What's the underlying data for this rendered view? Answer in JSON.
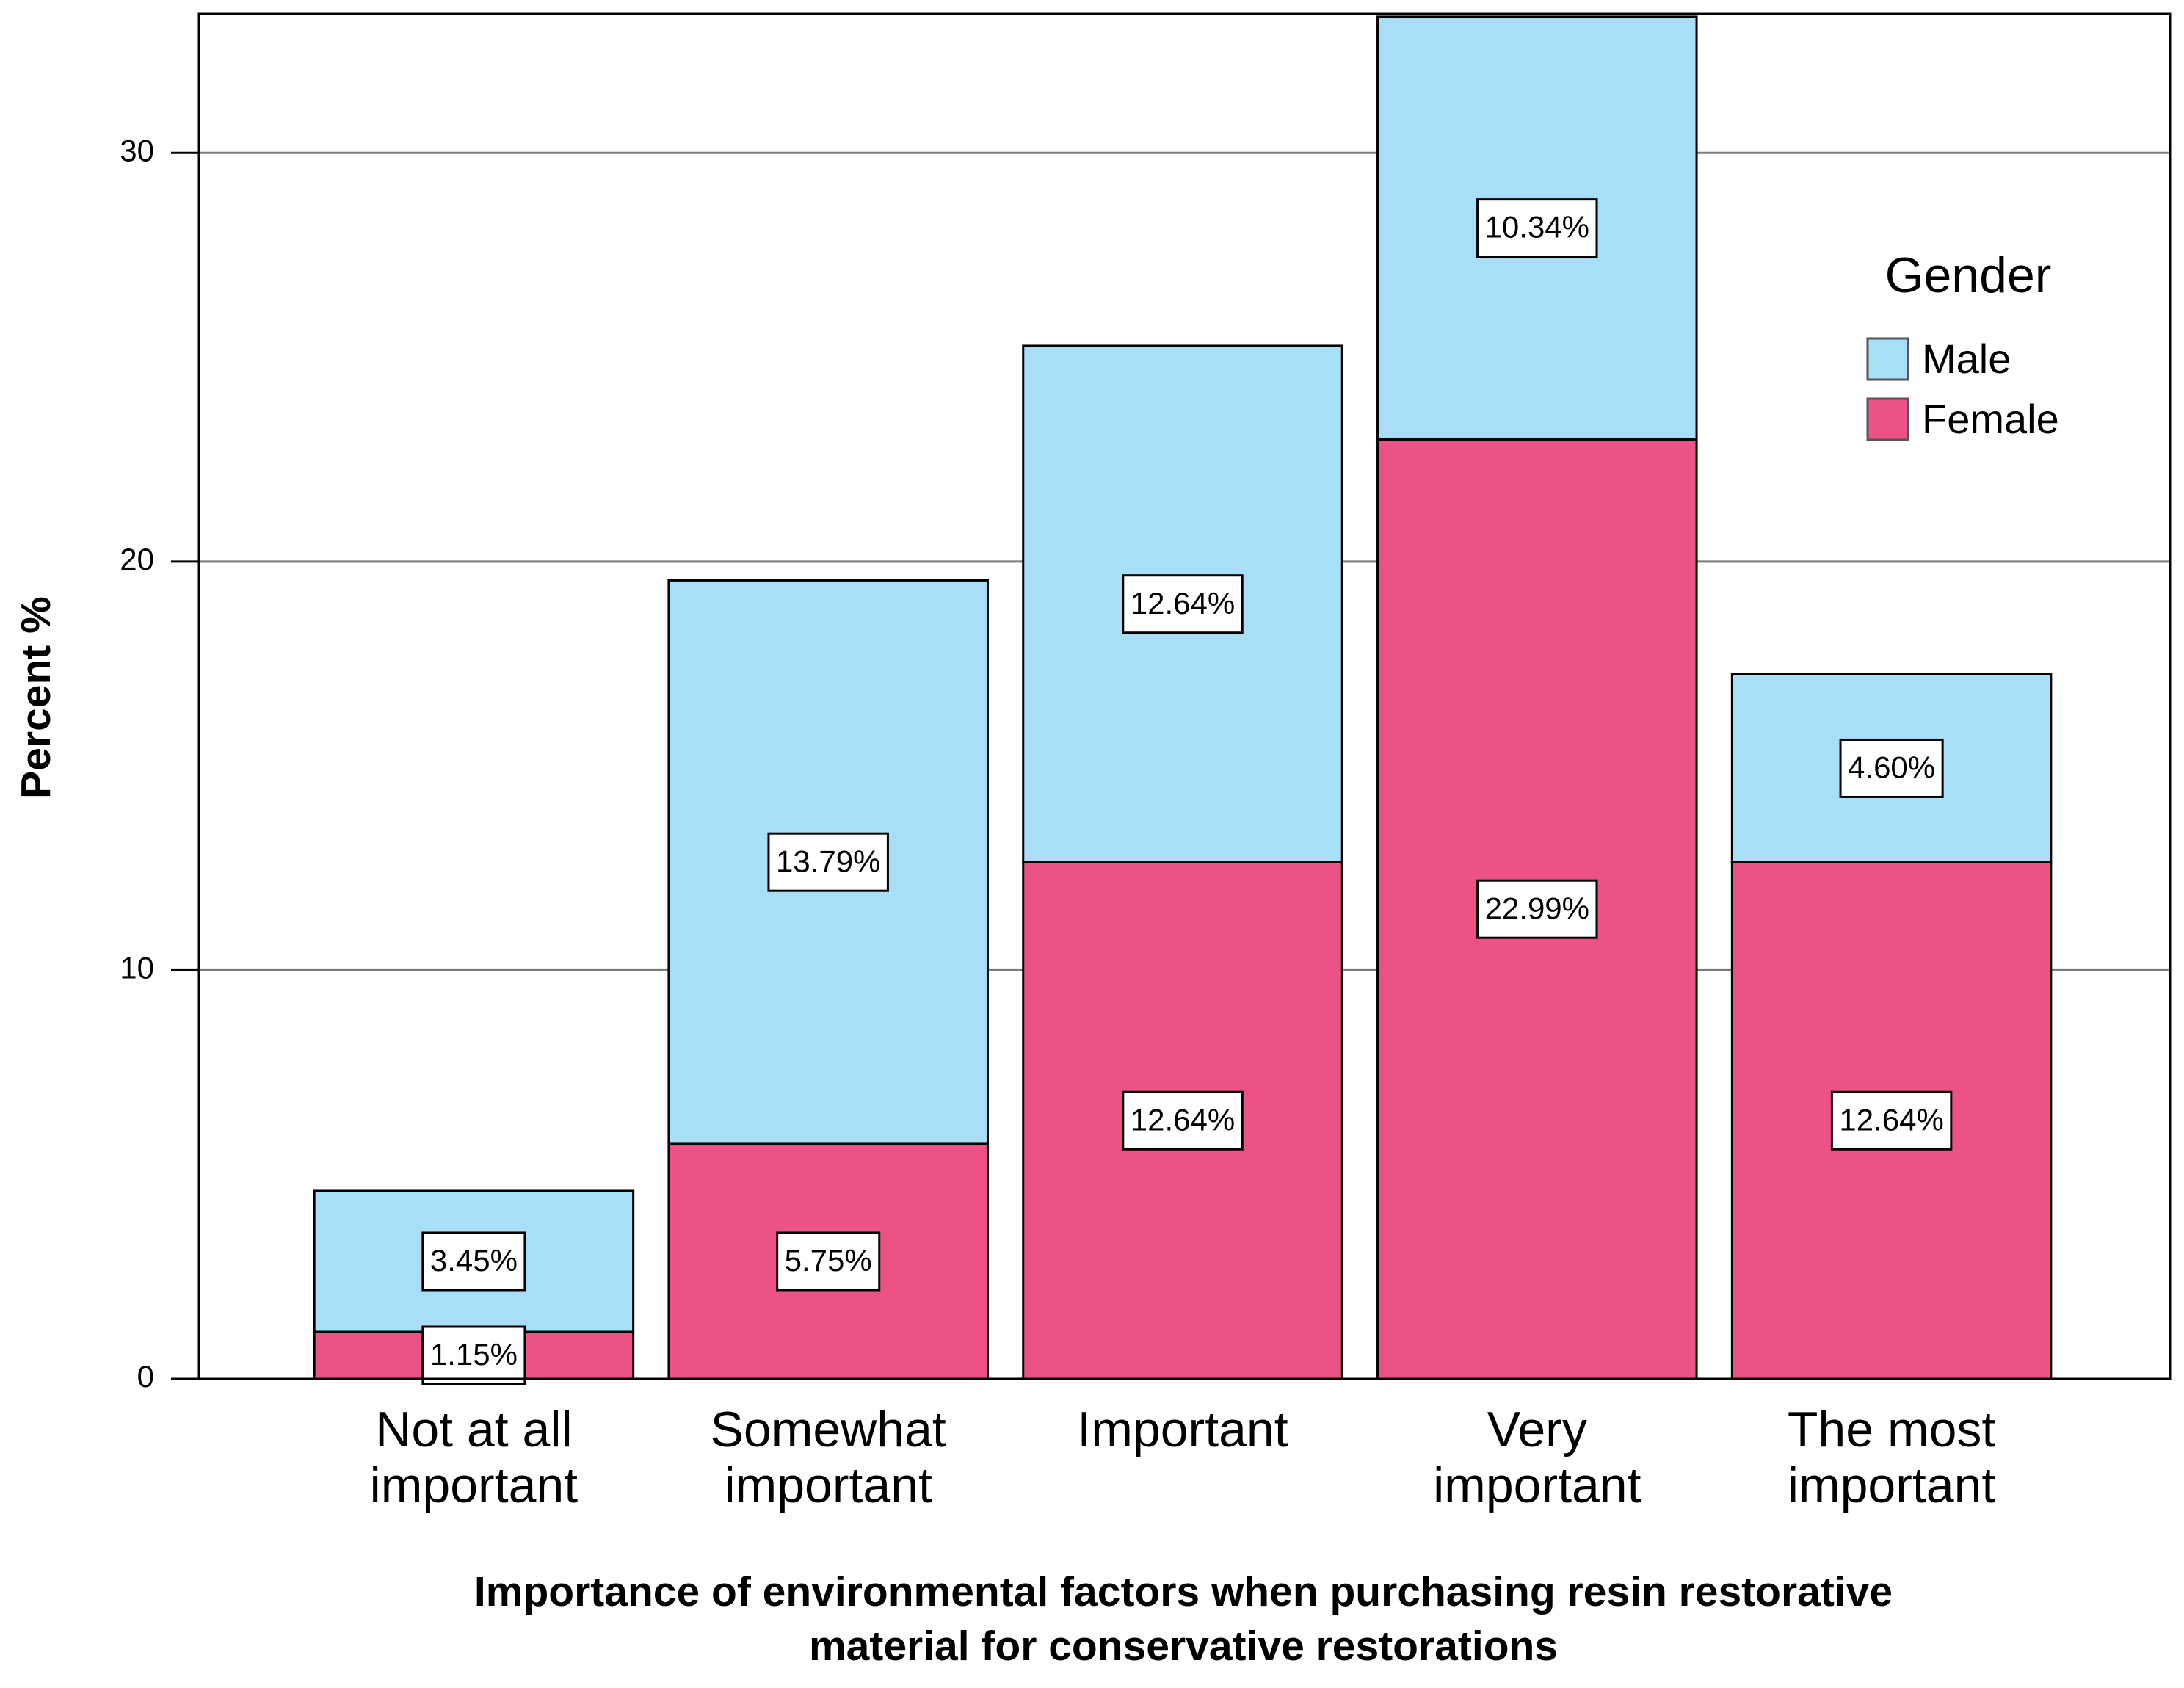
{
  "chart_data": {
    "type": "stacked_bar",
    "xlabel": "Importance of environmental factors when purchasing resin restorative material for conservative restorations",
    "ylabel": "Percent %",
    "categories": [
      "Not at all important",
      "Somewhat important",
      "Important",
      "Very important",
      "The most important"
    ],
    "series": [
      {
        "name": "Female",
        "color": "#ec5283",
        "values": [
          1.15,
          5.75,
          12.64,
          22.99,
          12.64
        ],
        "value_labels": [
          "1.15%",
          "5.75%",
          "12.64%",
          "22.99%",
          "12.64%"
        ]
      },
      {
        "name": "Male",
        "color": "#a8def8",
        "values": [
          3.45,
          13.79,
          12.64,
          10.34,
          4.6
        ],
        "value_labels": [
          "3.45%",
          "13.79%",
          "12.64%",
          "10.34%",
          "4.60%"
        ]
      }
    ],
    "legend_title": "Gender",
    "legend": "upper right",
    "ylim": [
      0,
      33.4
    ],
    "yticks": [
      0,
      10,
      20,
      30
    ],
    "grid": true
  }
}
